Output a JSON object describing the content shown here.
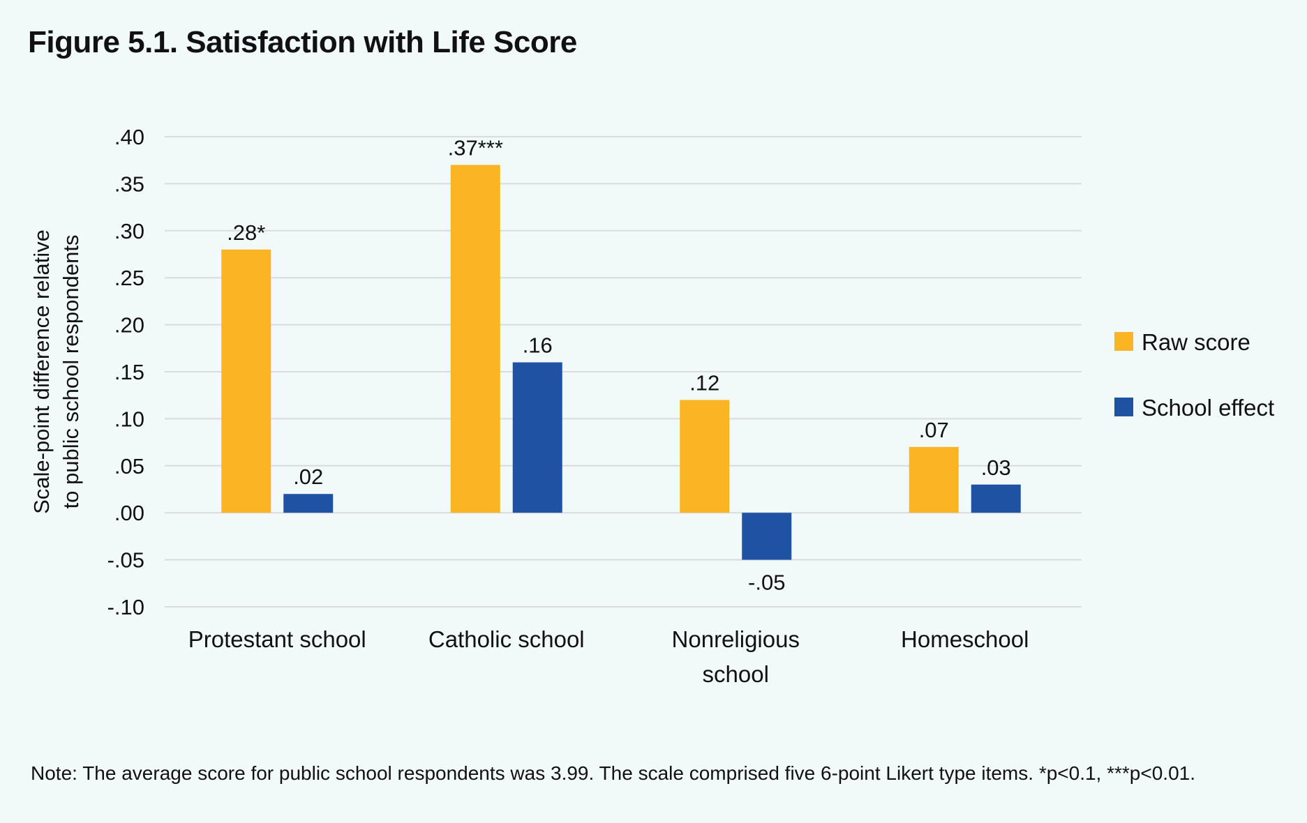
{
  "figure": {
    "title": "Figure 5.1. Satisfaction with Life Score",
    "note": "Note: The average score for public school respondents was 3.99. The scale comprised five 6-point Likert type items. *p<0.1, ***p<0.01."
  },
  "colors": {
    "raw": "#fbb424",
    "effect": "#1f52a3"
  },
  "chart_data": {
    "type": "bar",
    "categories": [
      [
        "Protestant school"
      ],
      [
        "Catholic school"
      ],
      [
        "Nonreligious",
        "school"
      ],
      [
        "Homeschool"
      ]
    ],
    "series": [
      {
        "name": "Raw score",
        "values": [
          0.28,
          0.37,
          0.12,
          0.07
        ],
        "labels": [
          ".28*",
          ".37***",
          ".12",
          ".07"
        ]
      },
      {
        "name": "School effect",
        "values": [
          0.02,
          0.16,
          -0.05,
          0.03
        ],
        "labels": [
          ".02",
          ".16",
          "-.05",
          ".03"
        ]
      }
    ],
    "ylabel": [
      "Scale-point difference relative",
      "to public school respondents"
    ],
    "ylim": [
      -0.1,
      0.4
    ],
    "yticks": [
      0.4,
      0.35,
      0.3,
      0.25,
      0.2,
      0.15,
      0.1,
      0.05,
      0.0,
      -0.05,
      -0.1
    ],
    "ytick_labels": [
      ".40",
      ".35",
      ".30",
      ".25",
      ".20",
      ".15",
      ".10",
      ".05",
      ".00",
      "-.05",
      "-.10"
    ],
    "grid": true,
    "legend": "right"
  }
}
